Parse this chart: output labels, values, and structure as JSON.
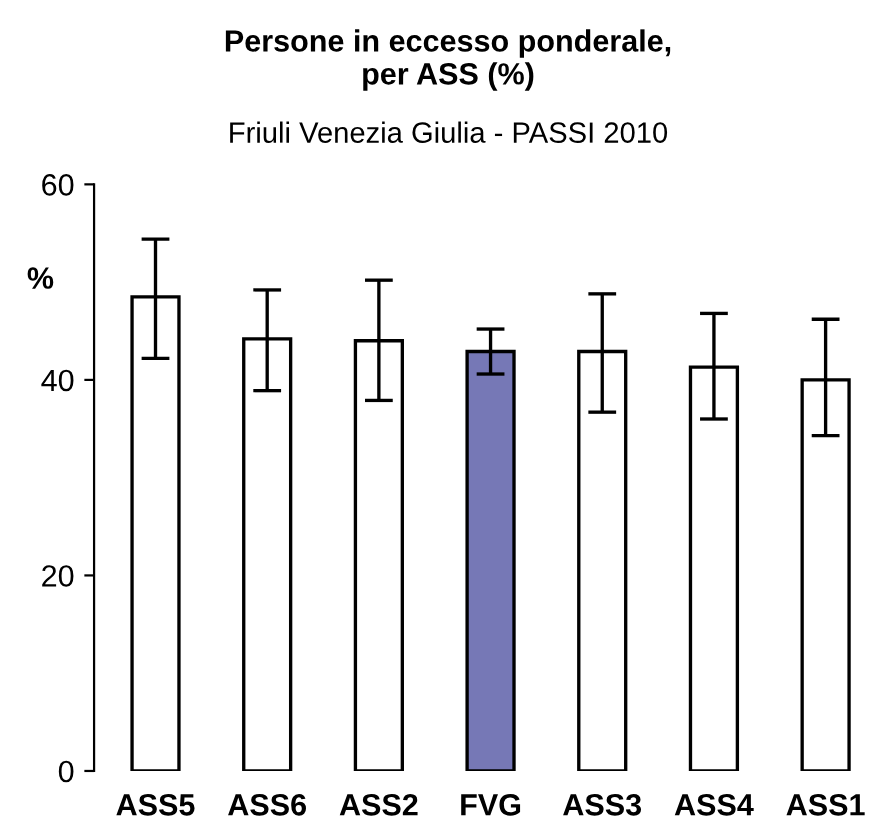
{
  "chart_data": {
    "type": "bar",
    "title": "Persone in eccesso ponderale,\nper ASS (%)",
    "subtitle": "Friuli Venezia Giulia - PASSI 2010",
    "ylabel": "%",
    "categories": [
      "ASS5",
      "ASS6",
      "ASS2",
      "FVG",
      "ASS3",
      "ASS4",
      "ASS1"
    ],
    "values": [
      48.5,
      44.2,
      44.0,
      42.9,
      42.9,
      41.3,
      40.0
    ],
    "colors": [
      "#ffffff",
      "#ffffff",
      "#ffffff",
      "#7678b6",
      "#ffffff",
      "#ffffff",
      "#ffffff"
    ],
    "errors": [
      [
        42.2,
        54.4
      ],
      [
        38.9,
        49.2
      ],
      [
        37.9,
        50.2
      ],
      [
        40.6,
        45.2
      ],
      [
        36.7,
        48.8
      ],
      [
        36.0,
        46.8
      ],
      [
        34.3,
        46.2
      ]
    ],
    "ylim": [
      0,
      60
    ],
    "yticks": [
      0,
      20,
      40,
      60
    ],
    "grid": false,
    "legend": false
  }
}
